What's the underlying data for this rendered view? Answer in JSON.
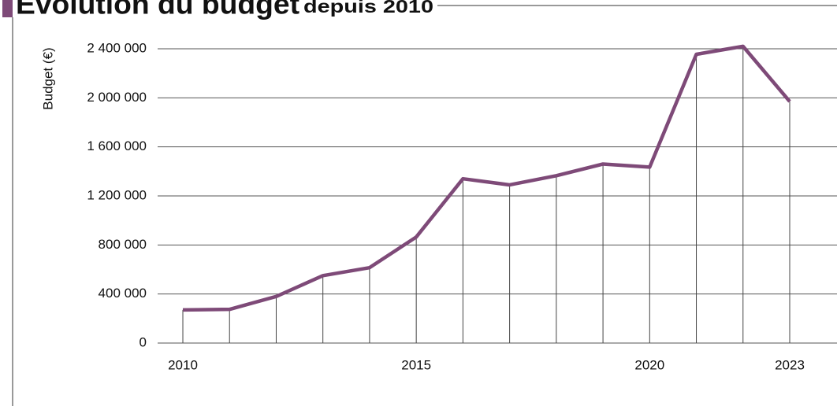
{
  "chart_data": {
    "type": "line",
    "title": "Évolution du budget",
    "subtitle": "depuis 2010",
    "y_label": "Budget (€)",
    "x": [
      2010,
      2011,
      2012,
      2013,
      2014,
      2015,
      2016,
      2017,
      2018,
      2019,
      2020,
      2021,
      2022,
      2023
    ],
    "series": [
      {
        "name": "Budget",
        "color": "#7e4a78",
        "values": [
          270000,
          275000,
          380000,
          550000,
          615000,
          865000,
          1340000,
          1290000,
          1365000,
          1460000,
          1435000,
          2355000,
          2420000,
          1970000
        ]
      }
    ],
    "xlim": [
      2010,
      2023
    ],
    "xticks": [
      2010,
      2015,
      2020,
      2023
    ],
    "ylim": [
      0,
      2400000
    ],
    "yticks": [
      0,
      {
        "value": 400000,
        "label": "400 000"
      },
      {
        "value": 800000,
        "label": "800 000"
      },
      {
        "value": 1200000,
        "label": "1 200 000"
      },
      {
        "value": 1600000,
        "label": "1 600 000"
      },
      {
        "value": 2000000,
        "label": "2 000 000"
      },
      {
        "value": 2400000,
        "label": "2 400 000"
      }
    ],
    "grid": true
  }
}
